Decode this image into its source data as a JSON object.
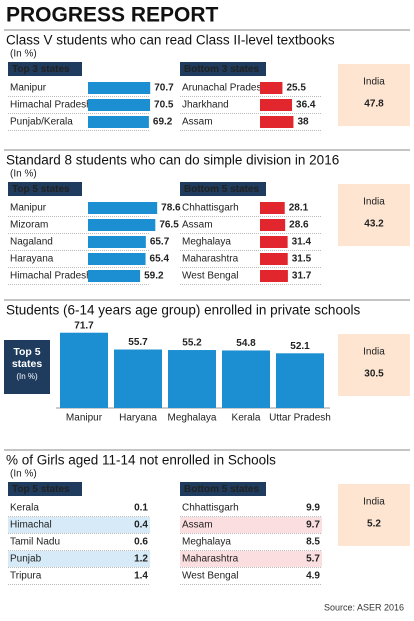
{
  "title": "PROGRESS REPORT",
  "source": "Source: ASER 2016",
  "chart_data": [
    {
      "type": "hbar",
      "title": "Class V students who can read Class II-level textbooks",
      "unit": "(In %)",
      "groups": [
        {
          "name": "Top 3 states",
          "color": "#1b8fd2",
          "categories": [
            "Manipur",
            "Himachal Pradesh",
            "Punjab/Kerala"
          ],
          "values": [
            70.7,
            70.5,
            69.2
          ]
        },
        {
          "name": "Bottom 3 states",
          "color": "#e1262d",
          "categories": [
            "Arunachal Pradesh",
            "Jharkhand",
            "Assam"
          ],
          "values": [
            25.5,
            36.4,
            38
          ]
        }
      ],
      "india": {
        "label": "India",
        "value": 47.8
      }
    },
    {
      "type": "hbar",
      "title": "Standard 8 students who can do simple division in 2016",
      "unit": "(In %)",
      "groups": [
        {
          "name": "Top 5 states",
          "color": "#1b8fd2",
          "categories": [
            "Manipur",
            "Mizoram",
            "Nagaland",
            "Harayana",
            "Himachal Pradesh"
          ],
          "values": [
            78.6,
            76.5,
            65.7,
            65.4,
            59.2
          ]
        },
        {
          "name": "Bottom 5 states",
          "color": "#e1262d",
          "categories": [
            "Chhattisgarh",
            "Assam",
            "Meghalaya",
            "Maharashtra",
            "West Bengal"
          ],
          "values": [
            28.1,
            28.6,
            31.4,
            31.5,
            31.7
          ]
        }
      ],
      "india": {
        "label": "India",
        "value": 43.2
      }
    },
    {
      "type": "vbar",
      "title": "Students (6-14 years age group) enrolled in private schools",
      "label": "Top 5 states",
      "unit": "(In %)",
      "color": "#1b8fd2",
      "categories": [
        "Manipur",
        "Haryana",
        "Meghalaya",
        "Kerala",
        "Uttar Pradesh"
      ],
      "values": [
        71.7,
        55.7,
        55.2,
        54.8,
        52.1
      ],
      "india": {
        "label": "India",
        "value": 30.5
      }
    },
    {
      "type": "list",
      "title": "% of Girls aged 11-14 not enrolled in Schools",
      "unit": "(In %)",
      "groups": [
        {
          "name": "Top 5 states",
          "color": "#1b8fd2",
          "highlight_color": "#d6ebf7",
          "highlight": [
            1,
            3
          ],
          "categories": [
            "Kerala",
            "Himachal",
            "Tamil Nadu",
            "Punjab",
            "Tripura"
          ],
          "values": [
            0.1,
            0.4,
            0.6,
            1.2,
            1.4
          ]
        },
        {
          "name": "Bottom 5 states",
          "color": "#e1262d",
          "highlight_color": "#fbdedf",
          "highlight": [
            1,
            3
          ],
          "categories": [
            "Chhattisgarh",
            "Assam",
            "Meghalaya",
            "Maharashtra",
            "West Bengal"
          ],
          "values": [
            9.9,
            9.7,
            8.5,
            5.7,
            4.9
          ]
        }
      ],
      "india": {
        "label": "India",
        "value": 5.2
      }
    }
  ]
}
